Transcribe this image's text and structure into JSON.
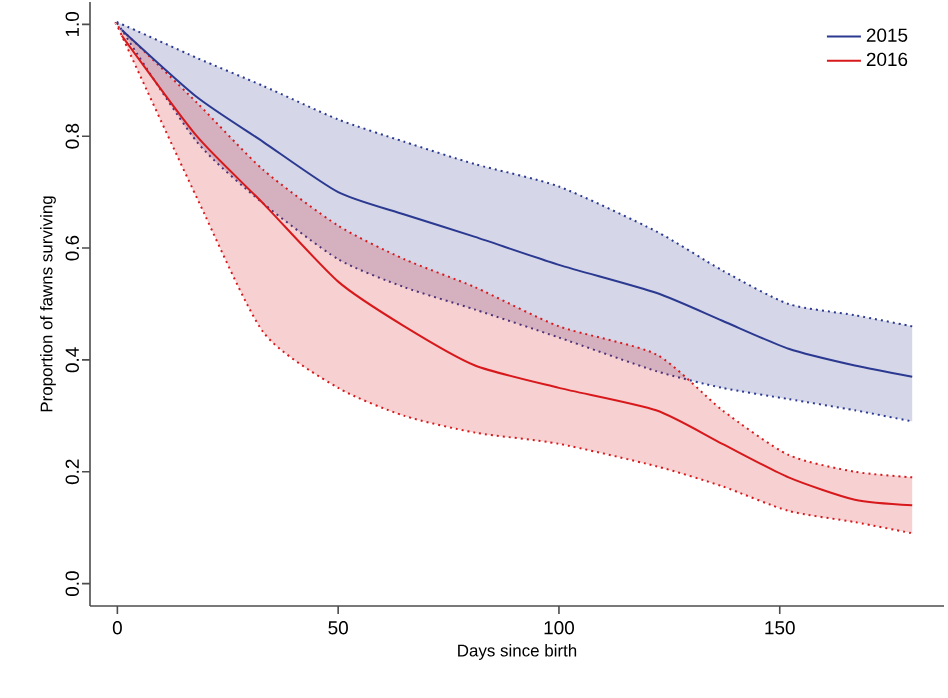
{
  "chart_data": {
    "type": "line",
    "xlabel": "Days since birth",
    "ylabel": "Proportion of fawns surviving",
    "xlim": [
      -6.2,
      187.2
    ],
    "ylim": [
      -0.04,
      1.04
    ],
    "xticks": [
      0,
      50,
      100,
      150
    ],
    "yticks": [
      {
        "value": 0,
        "label": "0.0"
      },
      0.2,
      0.4,
      0.6,
      0.8,
      {
        "value": 1,
        "label": "1.0"
      }
    ],
    "legend": "top right",
    "line_style": "solid",
    "grid": false,
    "series": [
      {
        "name": "2015",
        "color": "#2b3990",
        "x": [
          1,
          18,
          33,
          50,
          65,
          81,
          100,
          122,
          137,
          152,
          167,
          180
        ],
        "values": [
          0.99,
          0.87,
          0.79,
          0.7,
          0.66,
          0.62,
          0.57,
          0.52,
          0.47,
          0.42,
          0.39,
          0.37
        ],
        "upper": [
          1.0,
          0.94,
          0.89,
          0.83,
          0.79,
          0.75,
          0.71,
          0.63,
          0.56,
          0.5,
          0.48,
          0.46
        ],
        "lower": [
          0.99,
          0.79,
          0.68,
          0.58,
          0.53,
          0.49,
          0.44,
          0.38,
          0.35,
          0.33,
          0.31,
          0.29
        ]
      },
      {
        "name": "2016",
        "color": "#d7191c",
        "x": [
          1,
          18,
          33,
          50,
          65,
          81,
          100,
          122,
          137,
          152,
          167,
          180
        ],
        "values": [
          0.98,
          0.8,
          0.68,
          0.54,
          0.46,
          0.39,
          0.35,
          0.31,
          0.25,
          0.19,
          0.15,
          0.14
        ],
        "upper": [
          0.99,
          0.86,
          0.74,
          0.64,
          0.58,
          0.53,
          0.46,
          0.41,
          0.31,
          0.23,
          0.2,
          0.19
        ],
        "lower": [
          0.98,
          0.69,
          0.45,
          0.35,
          0.3,
          0.27,
          0.25,
          0.21,
          0.174,
          0.13,
          0.11,
          0.09
        ]
      }
    ]
  }
}
